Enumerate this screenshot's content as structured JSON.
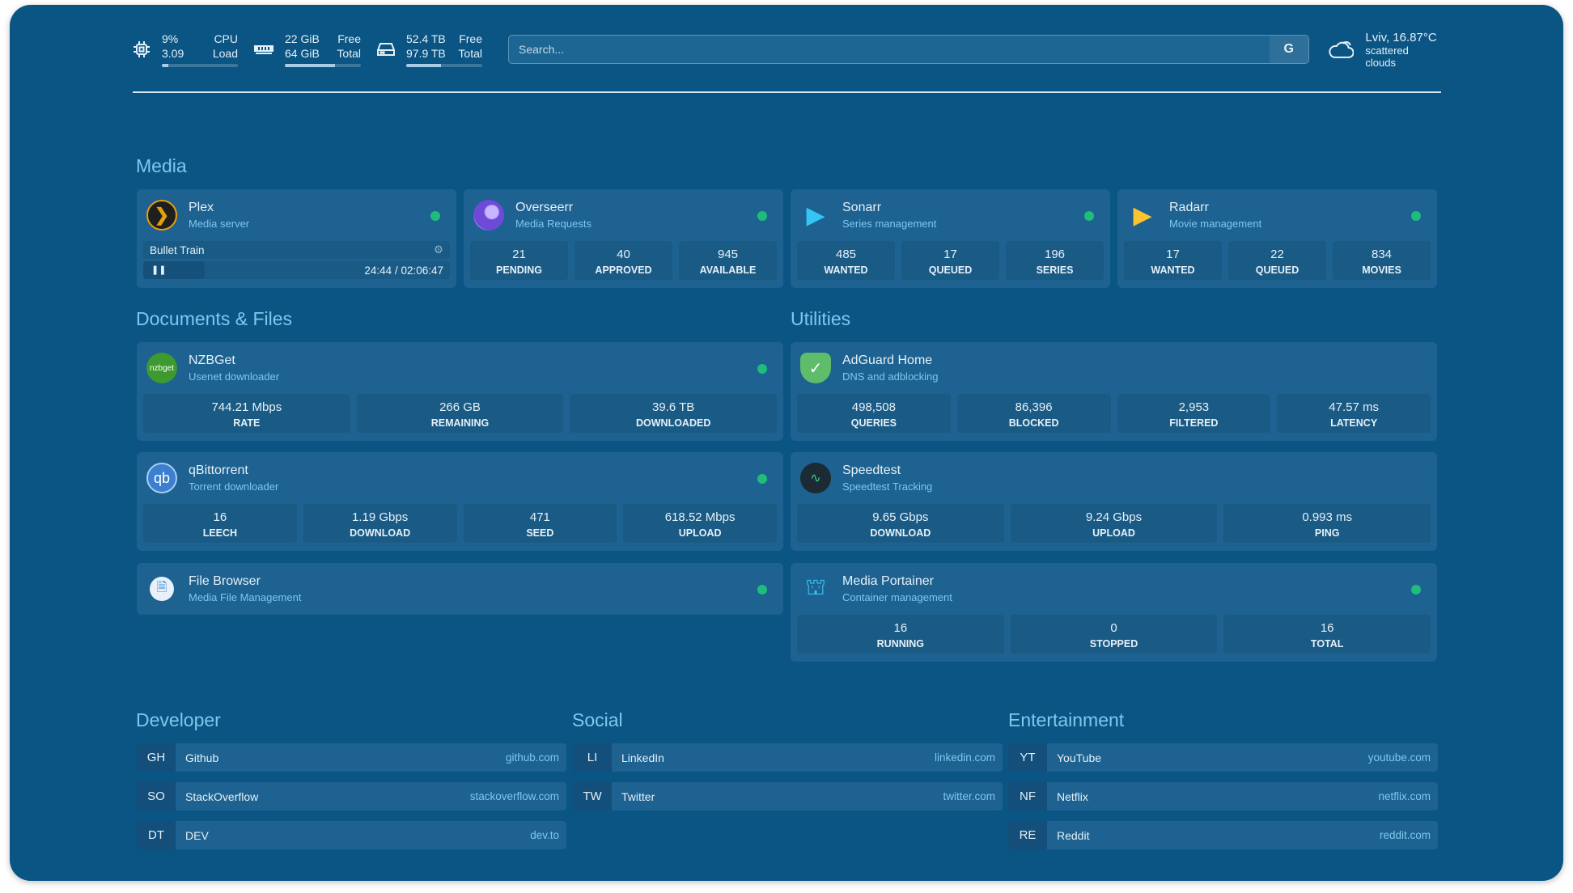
{
  "header": {
    "cpu": {
      "v1": "9%",
      "l1": "CPU",
      "v2": "3.09",
      "l2": "Load",
      "pct": 9
    },
    "mem": {
      "v1": "22 GiB",
      "l1": "Free",
      "v2": "64 GiB",
      "l2": "Total",
      "pct": 66
    },
    "disk": {
      "v1": "52.4 TB",
      "l1": "Free",
      "v2": "97.9 TB",
      "l2": "Total",
      "pct": 46
    },
    "search_placeholder": "Search...",
    "search_button": "G",
    "weather": {
      "location": "Lviv, 16.87°C",
      "desc": "scattered clouds"
    }
  },
  "sections": {
    "media": "Media",
    "docs": "Documents & Files",
    "utils": "Utilities",
    "dev": "Developer",
    "social": "Social",
    "ent": "Entertainment"
  },
  "media": [
    {
      "name": "Plex",
      "desc": "Media server",
      "now_playing": "Bullet Train",
      "time": "24:44 / 02:06:47"
    },
    {
      "name": "Overseerr",
      "desc": "Media Requests",
      "stats": [
        {
          "v": "21",
          "l": "PENDING"
        },
        {
          "v": "40",
          "l": "APPROVED"
        },
        {
          "v": "945",
          "l": "AVAILABLE"
        }
      ]
    },
    {
      "name": "Sonarr",
      "desc": "Series management",
      "stats": [
        {
          "v": "485",
          "l": "WANTED"
        },
        {
          "v": "17",
          "l": "QUEUED"
        },
        {
          "v": "196",
          "l": "SERIES"
        }
      ]
    },
    {
      "name": "Radarr",
      "desc": "Movie management",
      "stats": [
        {
          "v": "17",
          "l": "WANTED"
        },
        {
          "v": "22",
          "l": "QUEUED"
        },
        {
          "v": "834",
          "l": "MOVIES"
        }
      ]
    }
  ],
  "docs": [
    {
      "name": "NZBGet",
      "icon_text": "nzbget",
      "desc": "Usenet downloader",
      "stats": [
        {
          "v": "744.21 Mbps",
          "l": "RATE"
        },
        {
          "v": "266 GB",
          "l": "REMAINING"
        },
        {
          "v": "39.6 TB",
          "l": "DOWNLOADED"
        }
      ]
    },
    {
      "name": "qBittorrent",
      "icon_text": "qb",
      "desc": "Torrent downloader",
      "stats": [
        {
          "v": "16",
          "l": "LEECH"
        },
        {
          "v": "1.19 Gbps",
          "l": "DOWNLOAD"
        },
        {
          "v": "471",
          "l": "SEED"
        },
        {
          "v": "618.52 Mbps",
          "l": "UPLOAD"
        }
      ]
    },
    {
      "name": "File Browser",
      "desc": "Media File Management"
    }
  ],
  "utils": [
    {
      "name": "AdGuard Home",
      "desc": "DNS and adblocking",
      "stats": [
        {
          "v": "498,508",
          "l": "QUERIES"
        },
        {
          "v": "86,396",
          "l": "BLOCKED"
        },
        {
          "v": "2,953",
          "l": "FILTERED"
        },
        {
          "v": "47.57 ms",
          "l": "LATENCY"
        }
      ]
    },
    {
      "name": "Speedtest",
      "desc": "Speedtest Tracking",
      "stats": [
        {
          "v": "9.65 Gbps",
          "l": "DOWNLOAD"
        },
        {
          "v": "9.24 Gbps",
          "l": "UPLOAD"
        },
        {
          "v": "0.993 ms",
          "l": "PING"
        }
      ]
    },
    {
      "name": "Media Portainer",
      "desc": "Container management",
      "stats": [
        {
          "v": "16",
          "l": "RUNNING"
        },
        {
          "v": "0",
          "l": "STOPPED"
        },
        {
          "v": "16",
          "l": "TOTAL"
        }
      ]
    }
  ],
  "bookmarks": {
    "dev": [
      {
        "abbr": "GH",
        "name": "Github",
        "url": "github.com"
      },
      {
        "abbr": "SO",
        "name": "StackOverflow",
        "url": "stackoverflow.com"
      },
      {
        "abbr": "DT",
        "name": "DEV",
        "url": "dev.to"
      }
    ],
    "social": [
      {
        "abbr": "LI",
        "name": "LinkedIn",
        "url": "linkedin.com"
      },
      {
        "abbr": "TW",
        "name": "Twitter",
        "url": "twitter.com"
      }
    ],
    "ent": [
      {
        "abbr": "YT",
        "name": "YouTube",
        "url": "youtube.com"
      },
      {
        "abbr": "NF",
        "name": "Netflix",
        "url": "netflix.com"
      },
      {
        "abbr": "RE",
        "name": "Reddit",
        "url": "reddit.com"
      }
    ]
  }
}
